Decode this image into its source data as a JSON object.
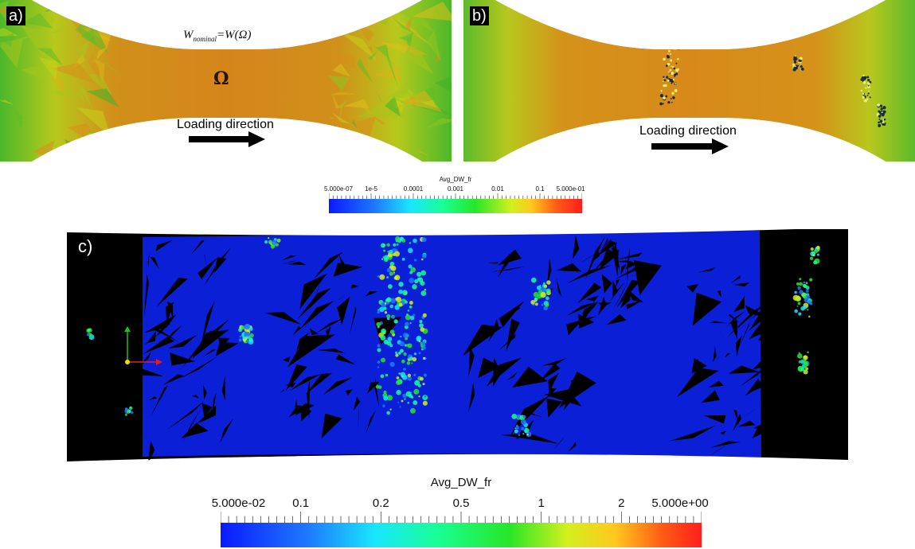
{
  "panels": {
    "a": {
      "tag": "a)",
      "formula": {
        "lhs": "W",
        "sub": "nominal",
        "rhs": "=W(Ω)"
      },
      "region_label": "Ω",
      "loading_label": "Loading direction"
    },
    "b": {
      "tag": "b)",
      "loading_label": "Loading direction"
    },
    "c": {
      "tag": "c)"
    }
  },
  "colorbar_small": {
    "title": "Avg_DW_fr",
    "ticks": [
      "5.000e-07",
      "1e-5",
      "0.0001",
      "0.001",
      "0.01",
      "0.1",
      "5.000e-01"
    ]
  },
  "colorbar_large": {
    "title": "Avg_DW_fr",
    "ticks": [
      "5.000e-02",
      "0.1",
      "0.2",
      "0.5",
      "1",
      "2",
      "5.000e+00"
    ]
  },
  "colors": {
    "specimen_orange": "#d78a1a",
    "colormap": [
      "#0a1aff",
      "#1e78ff",
      "#19e6ff",
      "#19ff96",
      "#28e628",
      "#d2f01e",
      "#ffc81e",
      "#ff5a14",
      "#ff1e1e"
    ],
    "axis_x": "#e02020",
    "axis_y": "#20c020",
    "axis_origin": "#f0e000"
  }
}
